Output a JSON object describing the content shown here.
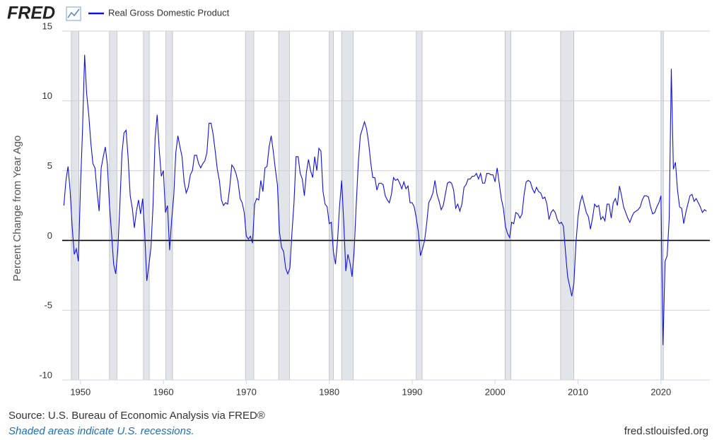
{
  "chart_data": {
    "type": "line",
    "logo": "FRED",
    "ylabel": "Percent Change from Year Ago",
    "source": "Source: U.S. Bureau of Economic Analysis via FRED®",
    "note": "Shaded areas indicate U.S. recessions.",
    "site": "fred.stlouisfed.org",
    "xlim": [
      1947.8,
      2025.9
    ],
    "ylim": [
      -10,
      15
    ],
    "xticks": [
      1950,
      1960,
      1970,
      1980,
      1990,
      2000,
      2010,
      2020
    ],
    "yticks": [
      -10,
      -5,
      0,
      5,
      10,
      15
    ],
    "grid": true,
    "legend": "top-left",
    "recessions": [
      [
        1948.9,
        1949.8
      ],
      [
        1953.5,
        1954.4
      ],
      [
        1957.6,
        1958.3
      ],
      [
        1960.3,
        1961.1
      ],
      [
        1969.9,
        1970.9
      ],
      [
        1973.9,
        1975.2
      ],
      [
        1980.0,
        1980.5
      ],
      [
        1981.5,
        1982.9
      ],
      [
        1990.5,
        1991.2
      ],
      [
        2001.2,
        2001.9
      ],
      [
        2007.9,
        2009.5
      ],
      [
        2020.0,
        2020.3
      ]
    ],
    "x": [
      1948,
      1948.25,
      1948.5,
      1948.75,
      1949,
      1949.25,
      1949.5,
      1949.75,
      1950,
      1950.25,
      1950.5,
      1950.75,
      1951,
      1951.25,
      1951.5,
      1951.75,
      1952,
      1952.25,
      1952.5,
      1952.75,
      1953,
      1953.25,
      1953.5,
      1953.75,
      1954,
      1954.25,
      1954.5,
      1954.75,
      1955,
      1955.25,
      1955.5,
      1955.75,
      1956,
      1956.25,
      1956.5,
      1956.75,
      1957,
      1957.25,
      1957.5,
      1957.75,
      1958,
      1958.25,
      1958.5,
      1958.75,
      1959,
      1959.25,
      1959.5,
      1959.75,
      1960,
      1960.25,
      1960.5,
      1960.75,
      1961,
      1961.25,
      1961.5,
      1961.75,
      1962,
      1962.25,
      1962.5,
      1962.75,
      1963,
      1963.25,
      1963.5,
      1963.75,
      1964,
      1964.25,
      1964.5,
      1964.75,
      1965,
      1965.25,
      1965.5,
      1965.75,
      1966,
      1966.25,
      1966.5,
      1966.75,
      1967,
      1967.25,
      1967.5,
      1967.75,
      1968,
      1968.25,
      1968.5,
      1968.75,
      1969,
      1969.25,
      1969.5,
      1969.75,
      1970,
      1970.25,
      1970.5,
      1970.75,
      1971,
      1971.25,
      1971.5,
      1971.75,
      1972,
      1972.25,
      1972.5,
      1972.75,
      1973,
      1973.25,
      1973.5,
      1973.75,
      1974,
      1974.25,
      1974.5,
      1974.75,
      1975,
      1975.25,
      1975.5,
      1975.75,
      1976,
      1976.25,
      1976.5,
      1976.75,
      1977,
      1977.25,
      1977.5,
      1977.75,
      1978,
      1978.25,
      1978.5,
      1978.75,
      1979,
      1979.25,
      1979.5,
      1979.75,
      1980,
      1980.25,
      1980.5,
      1980.75,
      1981,
      1981.25,
      1981.5,
      1981.75,
      1982,
      1982.25,
      1982.5,
      1982.75,
      1983,
      1983.25,
      1983.5,
      1983.75,
      1984,
      1984.25,
      1984.5,
      1984.75,
      1985,
      1985.25,
      1985.5,
      1985.75,
      1986,
      1986.25,
      1986.5,
      1986.75,
      1987,
      1987.25,
      1987.5,
      1987.75,
      1988,
      1988.25,
      1988.5,
      1988.75,
      1989,
      1989.25,
      1989.5,
      1989.75,
      1990,
      1990.25,
      1990.5,
      1990.75,
      1991,
      1991.25,
      1991.5,
      1991.75,
      1992,
      1992.25,
      1992.5,
      1992.75,
      1993,
      1993.25,
      1993.5,
      1993.75,
      1994,
      1994.25,
      1994.5,
      1994.75,
      1995,
      1995.25,
      1995.5,
      1995.75,
      1996,
      1996.25,
      1996.5,
      1996.75,
      1997,
      1997.25,
      1997.5,
      1997.75,
      1998,
      1998.25,
      1998.5,
      1998.75,
      1999,
      1999.25,
      1999.5,
      1999.75,
      2000,
      2000.25,
      2000.5,
      2000.75,
      2001,
      2001.25,
      2001.5,
      2001.75,
      2002,
      2002.25,
      2002.5,
      2002.75,
      2003,
      2003.25,
      2003.5,
      2003.75,
      2004,
      2004.25,
      2004.5,
      2004.75,
      2005,
      2005.25,
      2005.5,
      2005.75,
      2006,
      2006.25,
      2006.5,
      2006.75,
      2007,
      2007.25,
      2007.5,
      2007.75,
      2008,
      2008.25,
      2008.5,
      2008.75,
      2009,
      2009.25,
      2009.5,
      2009.75,
      2010,
      2010.25,
      2010.5,
      2010.75,
      2011,
      2011.25,
      2011.5,
      2011.75,
      2012,
      2012.25,
      2012.5,
      2012.75,
      2013,
      2013.25,
      2013.5,
      2013.75,
      2014,
      2014.25,
      2014.5,
      2014.75,
      2015,
      2015.25,
      2015.5,
      2015.75,
      2016,
      2016.25,
      2016.5,
      2016.75,
      2017,
      2017.25,
      2017.5,
      2017.75,
      2018,
      2018.25,
      2018.5,
      2018.75,
      2019,
      2019.25,
      2019.5,
      2019.75,
      2020,
      2020.25,
      2020.5,
      2020.75,
      2021,
      2021.25,
      2021.5,
      2021.75,
      2022,
      2022.25,
      2022.5,
      2022.75,
      2023,
      2023.25,
      2023.5,
      2023.75,
      2024,
      2024.25,
      2024.5,
      2024.75,
      2025,
      2025.25,
      2025.5
    ],
    "series": [
      {
        "name": "Real Gross Domestic Product",
        "color": "#1111dd",
        "values": [
          2.5,
          4.3,
          5.3,
          3.6,
          1.0,
          -1.0,
          -0.6,
          -1.5,
          3.8,
          7.9,
          13.3,
          10.5,
          9.0,
          7.0,
          5.5,
          5.2,
          3.5,
          2.1,
          5.2,
          6.0,
          6.7,
          5.4,
          2.5,
          0.5,
          -1.7,
          -2.4,
          -0.7,
          2.5,
          6.2,
          7.7,
          7.9,
          5.9,
          3.2,
          2.3,
          0.9,
          2.1,
          2.9,
          1.9,
          3.0,
          0.5,
          -2.9,
          -1.8,
          -0.5,
          2.5,
          7.3,
          9.0,
          6.5,
          4.6,
          5.0,
          2.0,
          2.5,
          -0.7,
          1.5,
          3.2,
          6.3,
          7.5,
          6.7,
          6.0,
          4.2,
          3.4,
          3.8,
          4.7,
          5.0,
          6.1,
          6.1,
          5.5,
          5.2,
          5.5,
          5.7,
          6.3,
          8.4,
          8.4,
          7.6,
          6.4,
          5.1,
          4.3,
          2.9,
          2.5,
          2.7,
          2.6,
          3.8,
          5.4,
          5.2,
          4.8,
          4.2,
          3.0,
          2.7,
          2.0,
          0.3,
          0.1,
          0.3,
          -0.2,
          2.6,
          3.0,
          2.9,
          4.3,
          3.5,
          5.2,
          5.3,
          6.7,
          7.5,
          6.4,
          5.1,
          4.0,
          0.6,
          -0.5,
          -0.8,
          -2.0,
          -2.4,
          -2.0,
          0.5,
          2.7,
          6.0,
          6.0,
          4.8,
          4.4,
          3.2,
          4.9,
          5.8,
          5.0,
          4.5,
          6.0,
          5.0,
          6.6,
          6.4,
          3.5,
          2.6,
          2.4,
          1.2,
          1.3,
          -0.8,
          -1.7,
          0.0,
          2.5,
          4.3,
          1.3,
          -2.2,
          -1.0,
          -1.6,
          -2.6,
          -0.8,
          2.5,
          5.5,
          7.5,
          8.0,
          8.5,
          8.0,
          7.0,
          5.6,
          4.5,
          4.5,
          3.6,
          4.1,
          4.1,
          4.0,
          3.2,
          2.9,
          2.7,
          3.3,
          4.5,
          4.3,
          4.4,
          4.1,
          3.7,
          4.2,
          3.7,
          3.9,
          2.7,
          2.7,
          2.4,
          1.6,
          0.6,
          -1.1,
          -0.6,
          0.0,
          1.2,
          2.7,
          3.0,
          3.4,
          4.3,
          3.3,
          2.8,
          2.2,
          2.5,
          3.3,
          4.1,
          4.2,
          4.1,
          3.6,
          2.3,
          2.6,
          2.1,
          2.6,
          3.8,
          4.0,
          4.4,
          4.4,
          4.6,
          4.6,
          4.8,
          4.4,
          4.8,
          4.1,
          4.1,
          4.8,
          4.8,
          4.7,
          4.7,
          4.2,
          5.2,
          4.1,
          3.0,
          2.3,
          1.0,
          0.5,
          0.2,
          1.3,
          1.2,
          2.0,
          1.9,
          1.6,
          1.9,
          3.3,
          4.2,
          4.3,
          4.2,
          3.7,
          3.4,
          3.8,
          3.5,
          3.4,
          3.0,
          3.1,
          2.6,
          1.5,
          2.0,
          2.2,
          2.0,
          1.5,
          1.2,
          1.3,
          1.0,
          -0.9,
          -2.6,
          -3.3,
          -4.0,
          -3.1,
          -0.2,
          1.7,
          2.7,
          3.2,
          2.6,
          2.0,
          1.7,
          0.8,
          1.6,
          2.6,
          2.4,
          2.5,
          1.5,
          1.7,
          1.4,
          2.6,
          2.6,
          1.6,
          2.7,
          3.0,
          2.5,
          3.9,
          3.2,
          2.4,
          2.0,
          1.6,
          1.3,
          1.7,
          2.0,
          2.1,
          2.2,
          2.4,
          2.9,
          3.2,
          3.2,
          3.1,
          2.4,
          1.9,
          2.0,
          2.4,
          2.7,
          3.2,
          -7.5,
          -1.5,
          -1.1,
          1.6,
          12.3,
          5.1,
          5.6,
          3.6,
          2.4,
          2.3,
          1.2,
          2.0,
          2.6,
          3.2,
          3.3,
          2.8,
          3.0,
          2.7,
          2.4,
          2.0,
          2.2,
          2.1
        ]
      }
    ]
  }
}
